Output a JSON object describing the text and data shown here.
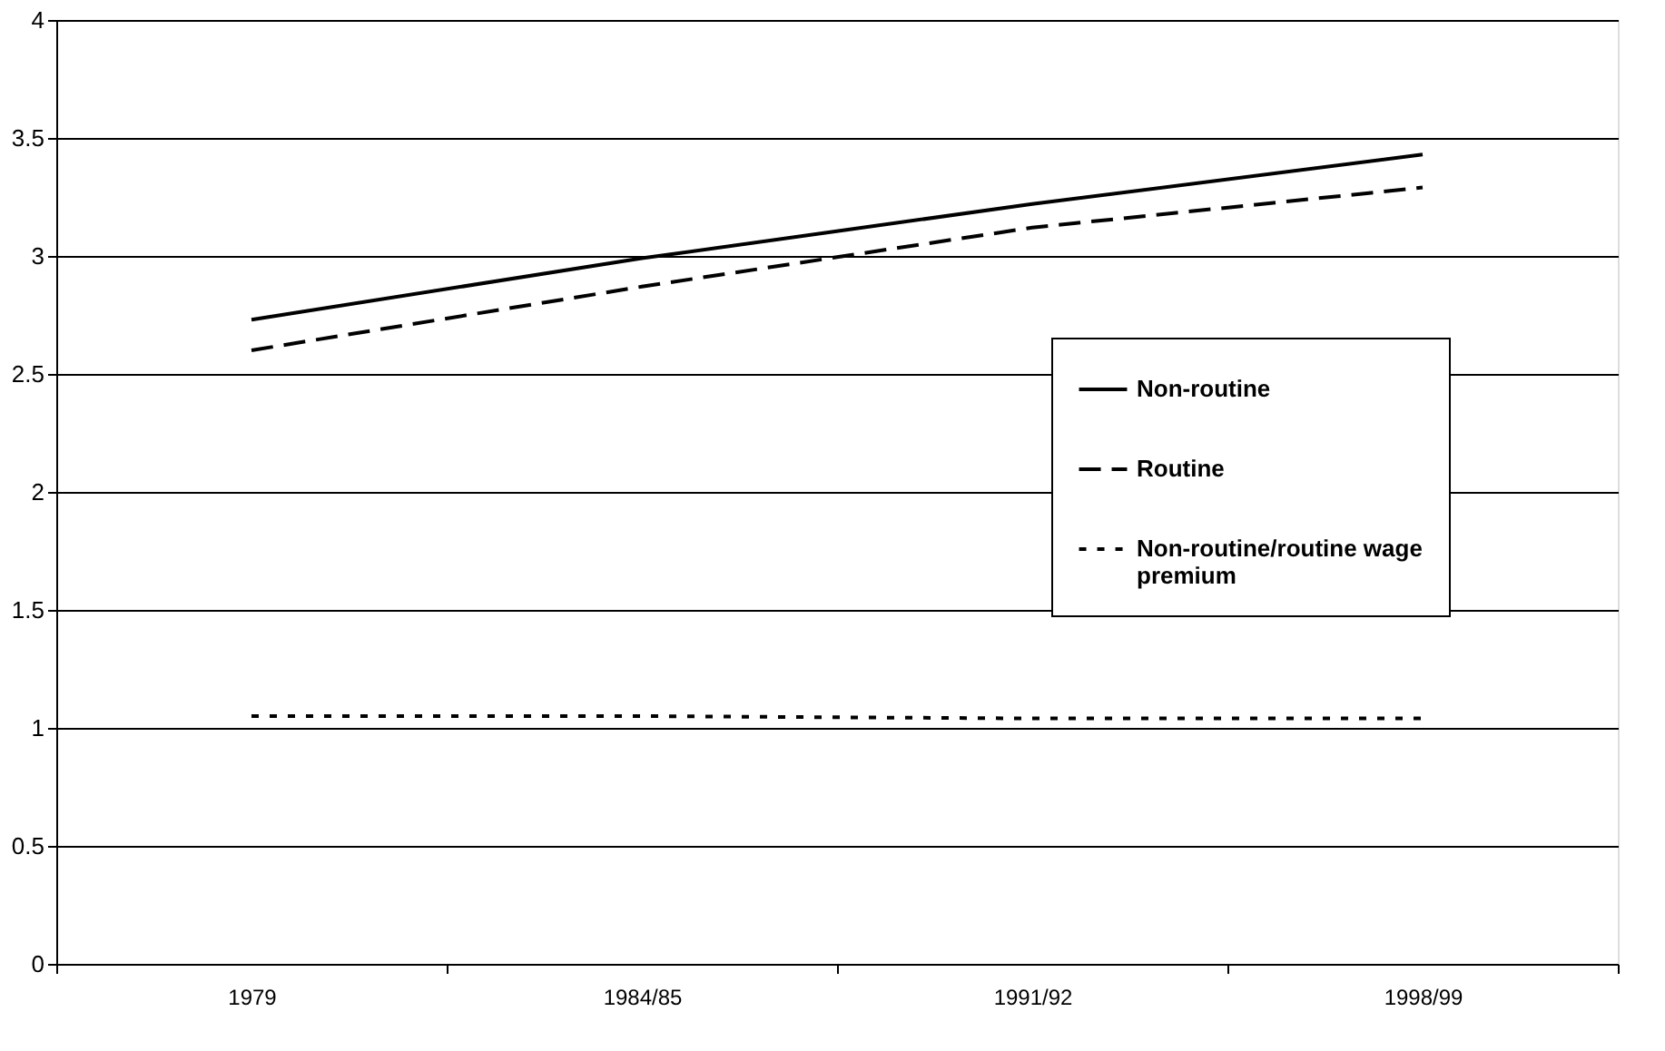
{
  "chart_data": {
    "type": "line",
    "categories": [
      "1979",
      "1984/85",
      "1991/92",
      "1998/99"
    ],
    "series": [
      {
        "name": "Non-routine",
        "color": "#000000",
        "line_style": "solid",
        "values": [
          2.73,
          2.99,
          3.22,
          3.43
        ]
      },
      {
        "name": "Routine",
        "color": "#000000",
        "line_style": "dashed",
        "values": [
          2.6,
          2.87,
          3.12,
          3.29
        ]
      },
      {
        "name": "Non-routine/routine wage premium",
        "color": "#000000",
        "line_style": "dotted",
        "values": [
          1.05,
          1.05,
          1.04,
          1.04
        ]
      }
    ],
    "ylim": [
      0,
      4
    ],
    "yticks": [
      0,
      0.5,
      1,
      1.5,
      2,
      2.5,
      3,
      3.5,
      4
    ],
    "grid": "y",
    "legend": "right",
    "marker": "none"
  }
}
